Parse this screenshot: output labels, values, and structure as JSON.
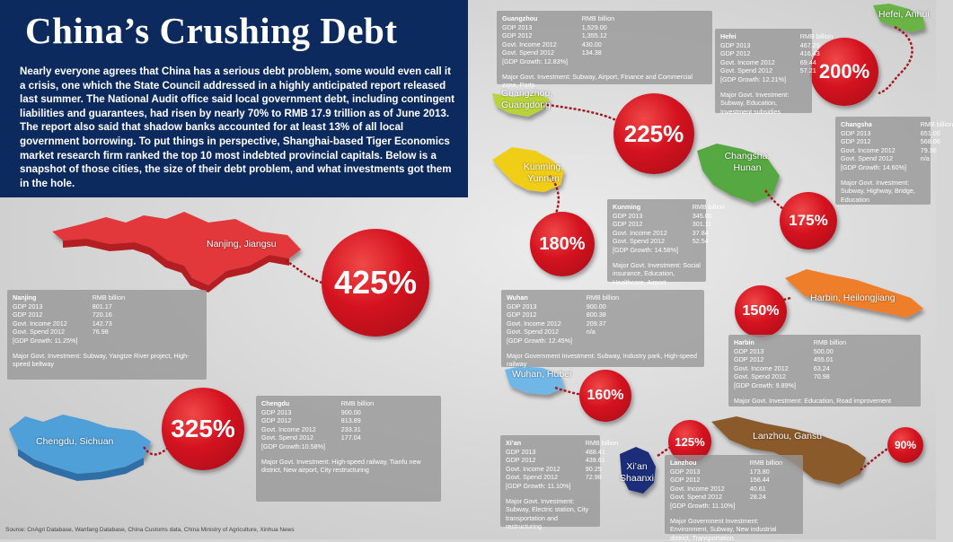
{
  "title": "China’s Crushing Debt",
  "intro": "Nearly everyone agrees that China has a serious debt problem, some would even call it a crisis, one which the State Council addressed in a highly anticipated report released last summer. The National Audit office said local government debt, including contingent liabilities and guarantees, had risen by nearly 70% to RMB 17.9 trillion as of June 2013. The report also said that shadow banks accounted for at least 13% of all local government borrowing. To put things in perspective, Shanghai-based Tiger Economics market research firm ranked the top 10 most indebted provincial capitals. Below is a snapshot of those cities, the size of their debt problem, and what investments got them in the hole.",
  "source": "Source: CnAgri Database, Wanfang Database, China Customs data, China Ministry of Agriculture, Xinhua News",
  "colors": {
    "header": "#0d2a5e",
    "circle": "#d4121f"
  },
  "cities": {
    "nanjing": {
      "label": "Nanjing, Jiangsu",
      "pct": "425%",
      "name": "Nanjing",
      "unit": "RMB billion",
      "rows": [
        [
          "GDP 2013",
          "801.17"
        ],
        [
          "GDP 2012",
          "720.16"
        ],
        [
          "Govt. Income 2012",
          "142.73"
        ],
        [
          "Govt. Spend 2012",
          "76.98"
        ]
      ],
      "growth": "[GDP Growth: 11.25%]",
      "inv": "Major Govt. Investment: Subway, Yangtze River project, High-speed beltway"
    },
    "chengdu": {
      "label": "Chengdu, Sichuan",
      "pct": "325%",
      "name": "Chengdu",
      "unit": "RMB billion",
      "rows": [
        [
          "GDP 2013",
          "900.00"
        ],
        [
          "GDP 2012",
          "813.89"
        ],
        [
          "Govt. Income 2012",
          "233.31"
        ],
        [
          "Govt. Spend 2012",
          "177.04"
        ]
      ],
      "growth": "[GDP Growth:10.58%]",
      "inv": "Major Govt. Investment: High-speed railway, Tianfu new district, New airport, City restructuring"
    },
    "guangzhou": {
      "label": "Guangzhou, Guangdong",
      "pct": "225%",
      "name": "Guangzhou",
      "unit": "RMB billion",
      "rows": [
        [
          "GDP 2013",
          "1,529.00"
        ],
        [
          "GDP 2012",
          "1,355.12"
        ],
        [
          "Govt. Income 2012",
          "430.00"
        ],
        [
          "Govt. Spend 2012",
          "134.38"
        ]
      ],
      "growth": "[GDP Growth: 12.83%]",
      "inv": "Major Govt. Investment: Subway, Airport, Finance and Commercial zone, Ports"
    },
    "hefei": {
      "label": "Hefei, Anhui",
      "pct": "200%",
      "name": "Hefei",
      "unit": "RMB billion",
      "rows": [
        [
          "GDP 2013",
          "467.29"
        ],
        [
          "GDP 2012",
          "416.43"
        ],
        [
          "Govt. Income 2012",
          "69.44"
        ],
        [
          "Govt. Spend 2012",
          "57.21"
        ]
      ],
      "growth": "[GDP Growth: 12.21%]",
      "inv": "Major Govt. Investment: Subway, Education, Investment subsidies"
    },
    "kunming": {
      "label": "Kunming, Yunnan",
      "pct": "180%",
      "name": "Kunming",
      "unit": "RMB billion",
      "rows": [
        [
          "GDP 2013",
          "345.00"
        ],
        [
          "GDP 2012",
          "301.11"
        ],
        [
          "Govt. Income 2012",
          "37.84"
        ],
        [
          "Govt. Spend 2012",
          "52.54"
        ]
      ],
      "growth": "[GDP Growth: 14.58%]",
      "inv": "Major Govt. Investment: Social insurance, Education, Healthcare, Airport"
    },
    "changsha": {
      "label": "Changsha, Hunan",
      "pct": "175%",
      "name": "Changsha",
      "unit": "RMB billion",
      "rows": [
        [
          "GDP 2013",
          "651.00"
        ],
        [
          "GDP 2012",
          "568.06"
        ],
        [
          "Govt. Income 2012",
          "79.36"
        ],
        [
          "Govt. Spend 2012",
          "n/a"
        ]
      ],
      "growth": "[GDP Growth: 14.60%]",
      "inv": "Major Govt. Investment: Subway, Highway, Bridge, Education"
    },
    "wuhan": {
      "label": "Wuhan, Hubei",
      "pct": "160%",
      "name": "Wuhan",
      "unit": "RMB billion",
      "rows": [
        [
          "GDP 2013",
          "900.00"
        ],
        [
          "GDP 2012",
          "800.38"
        ],
        [
          "Govt. Income 2012",
          "209.37"
        ],
        [
          "Govt. Spend 2012",
          "n/a"
        ]
      ],
      "growth": "[GDP Growth: 12.45%]",
      "inv": "Major Government Investment: Subway, Industry park, High-speed railway"
    },
    "harbin": {
      "label": "Harbin, Heilongjiang",
      "pct": "150%",
      "name": "Harbin",
      "unit": "RMB billion",
      "rows": [
        [
          "GDP 2013",
          "500.00"
        ],
        [
          "GDP 2012",
          "455.01"
        ],
        [
          "Govt. Income 2012",
          "63.24"
        ],
        [
          "Govt. Spend 2012",
          "70.98"
        ]
      ],
      "growth": "[GDP Growth: 9.89%]",
      "inv": "Major Govt. Investment: Education, Road improvement"
    },
    "xian": {
      "label": "Xi’an Shaanxi",
      "pct": "125%",
      "name": "Xi’an",
      "unit": "RMB billion",
      "rows": [
        [
          "GDP 2013",
          "488.41"
        ],
        [
          "GDP 2012",
          "439.61"
        ],
        [
          "Govt. Income 2012",
          "90.25"
        ],
        [
          "Govt. Spend 2012",
          "72.98"
        ]
      ],
      "growth": "[GDP Growth: 11.10%]",
      "inv": "Major Govt. Investment: Subway, Electric station, City transportation and restructuring"
    },
    "lanzhou": {
      "label": "Lanzhou, Gansu",
      "pct": "90%",
      "name": "Lanzhou",
      "unit": "RMB billion",
      "rows": [
        [
          "GDP 2013",
          "173.80"
        ],
        [
          "GDP 2012",
          "156.44"
        ],
        [
          "Govt. Income 2012",
          "40.61"
        ],
        [
          "Govt. Spend 2012",
          "28.24"
        ]
      ],
      "growth": "[GDP Growth: 11.10%]",
      "inv": "Major Government Investment: Environment, Subway, New industrial district, Transportation"
    }
  }
}
